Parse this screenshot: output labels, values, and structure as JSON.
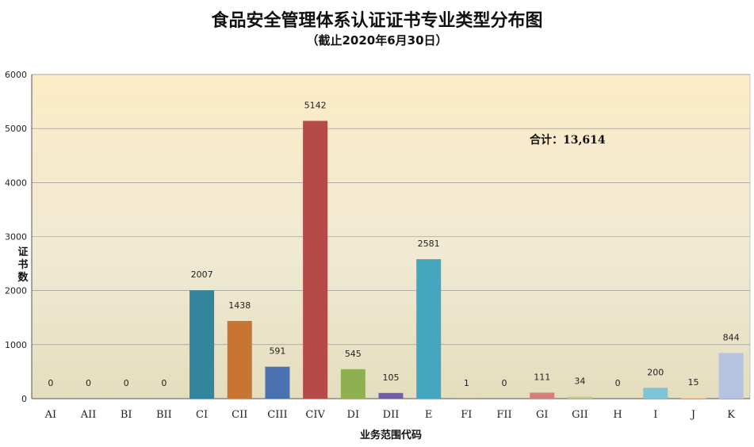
{
  "title": "食品安全管理体系认证证书专业类型分布图",
  "subtitle": "（截止2020年6月30日）",
  "annotation": "合计：13,614",
  "chart_data": {
    "type": "bar",
    "title": "食品安全管理体系认证证书专业类型分布图",
    "subtitle": "（截止2020年6月30日）",
    "xlabel": "业务范围代码",
    "ylabel": "证书数",
    "ylim": [
      0,
      6000
    ],
    "yticks": [
      0,
      1000,
      2000,
      3000,
      4000,
      5000,
      6000
    ],
    "grid": true,
    "legend": "none",
    "categories": [
      "AI",
      "AII",
      "BI",
      "BII",
      "CI",
      "CII",
      "CIII",
      "CIV",
      "DI",
      "DII",
      "E",
      "FI",
      "FII",
      "GI",
      "GII",
      "H",
      "I",
      "J",
      "K"
    ],
    "values": [
      0,
      0,
      0,
      0,
      2007,
      1438,
      591,
      5142,
      545,
      105,
      2581,
      1,
      0,
      111,
      34,
      0,
      200,
      15,
      844
    ],
    "data_labels": [
      "0",
      "0",
      "0",
      "0",
      "2007",
      "1438",
      "591",
      "5142",
      "545",
      "105",
      "2581",
      "1",
      "0",
      "111",
      "34",
      "0",
      "200",
      "15",
      "844"
    ],
    "colors": [
      "#4f81bd",
      "#c0504d",
      "#9bbb59",
      "#8064a2",
      "#31859c",
      "#c87533",
      "#4a72b0",
      "#b54a48",
      "#8eb050",
      "#7460a0",
      "#45a6bf",
      "#f59a4a",
      "#6b90c8",
      "#d47f7c",
      "#b5cc8a",
      "#a391bf",
      "#7ec3d6",
      "#f7bd8a",
      "#b4c3e0"
    ]
  }
}
